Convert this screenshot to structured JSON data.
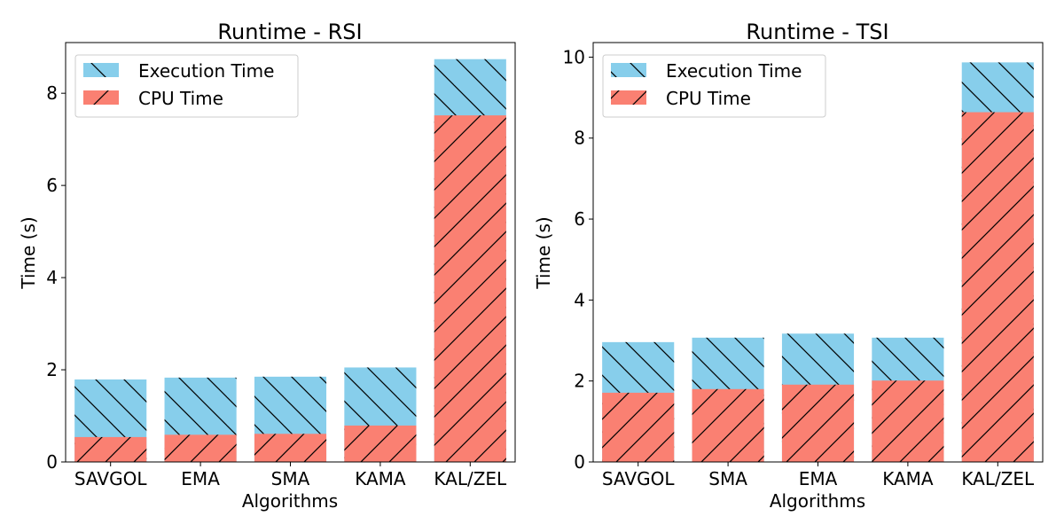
{
  "chart_data": [
    {
      "type": "bar",
      "stacked": false,
      "overlaid": true,
      "title": "Runtime - RSI",
      "xlabel": "Algorithms",
      "ylabel": "Time (s)",
      "categories": [
        "SAVGOL",
        "EMA",
        "SMA",
        "KAMA",
        "KAL/ZEL"
      ],
      "ylim": [
        0,
        9.1
      ],
      "yticks": [
        0,
        2,
        4,
        6,
        8
      ],
      "series": [
        {
          "name": "Execution Time",
          "values": [
            1.79,
            1.83,
            1.85,
            2.05,
            8.74
          ]
        },
        {
          "name": "CPU Time",
          "values": [
            0.54,
            0.59,
            0.61,
            0.79,
            7.52
          ]
        }
      ],
      "legend": "top-left",
      "grid": false
    },
    {
      "type": "bar",
      "stacked": false,
      "overlaid": true,
      "title": "Runtime - TSI",
      "xlabel": "Algorithms",
      "ylabel": "Time (s)",
      "categories": [
        "SAVGOL",
        "SMA",
        "EMA",
        "KAMA",
        "KAL/ZEL"
      ],
      "ylim": [
        0,
        10.36
      ],
      "yticks": [
        0,
        2,
        4,
        6,
        8,
        10
      ],
      "series": [
        {
          "name": "Execution Time",
          "values": [
            2.96,
            3.07,
            3.17,
            3.07,
            9.87
          ]
        },
        {
          "name": "CPU Time",
          "values": [
            1.71,
            1.8,
            1.91,
            2.01,
            8.64
          ]
        }
      ],
      "legend": "top-left",
      "grid": false
    }
  ],
  "colors": {
    "execution": "#87ceeb",
    "cpu": "#fa8072",
    "hatch": "#000000"
  }
}
